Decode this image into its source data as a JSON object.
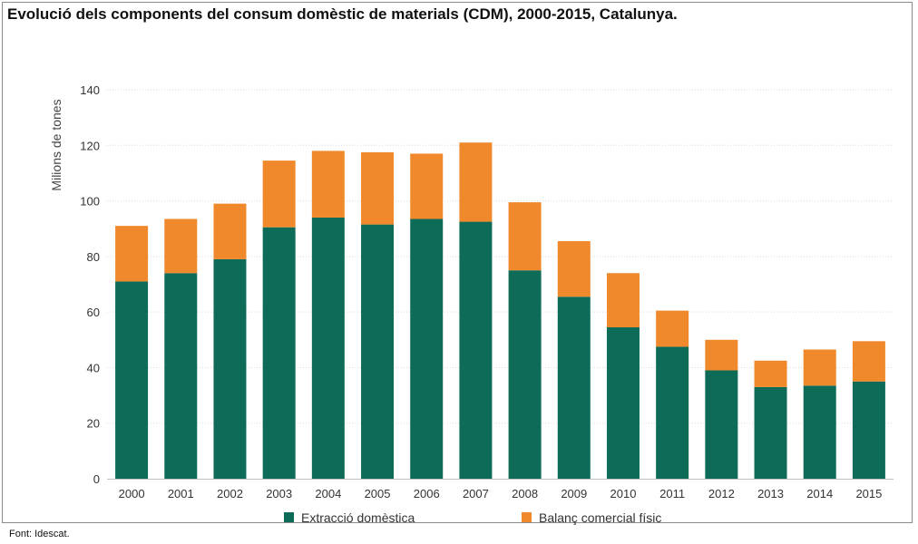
{
  "title": "Evolució dels components del consum domèstic de materials (CDM), 2000-2015, Catalunya.",
  "source": "Font: Idescat.",
  "colors": {
    "extraccio": "#0d6b58",
    "balanc": "#f0892b",
    "grid": "#d9d9d9"
  },
  "chart_data": {
    "type": "bar",
    "stacked": true,
    "title": "Evolució dels components del consum domèstic de materials (CDM), 2000-2015, Catalunya.",
    "xlabel": "",
    "ylabel": "Milions de tones",
    "ylim": [
      0,
      140
    ],
    "yticks": [
      0,
      20,
      40,
      60,
      80,
      100,
      120,
      140
    ],
    "grid": true,
    "legend_position": "bottom",
    "categories": [
      "2000",
      "2001",
      "2002",
      "2003",
      "2004",
      "2005",
      "2006",
      "2007",
      "2008",
      "2009",
      "2010",
      "2011",
      "2012",
      "2013",
      "2014",
      "2015"
    ],
    "series": [
      {
        "name": "Extracció domèstica",
        "color": "#0d6b58",
        "values": [
          71,
          74,
          79,
          90.5,
          94,
          91.5,
          93.5,
          92.5,
          75,
          65.5,
          54.5,
          47.5,
          39,
          33,
          33.5,
          35
        ]
      },
      {
        "name": "Balanç comercial físic",
        "color": "#f0892b",
        "values": [
          20,
          19.5,
          20,
          24,
          24,
          26,
          23.5,
          28.5,
          24.5,
          20,
          19.5,
          13,
          11,
          9.5,
          13,
          14.5
        ]
      }
    ]
  }
}
